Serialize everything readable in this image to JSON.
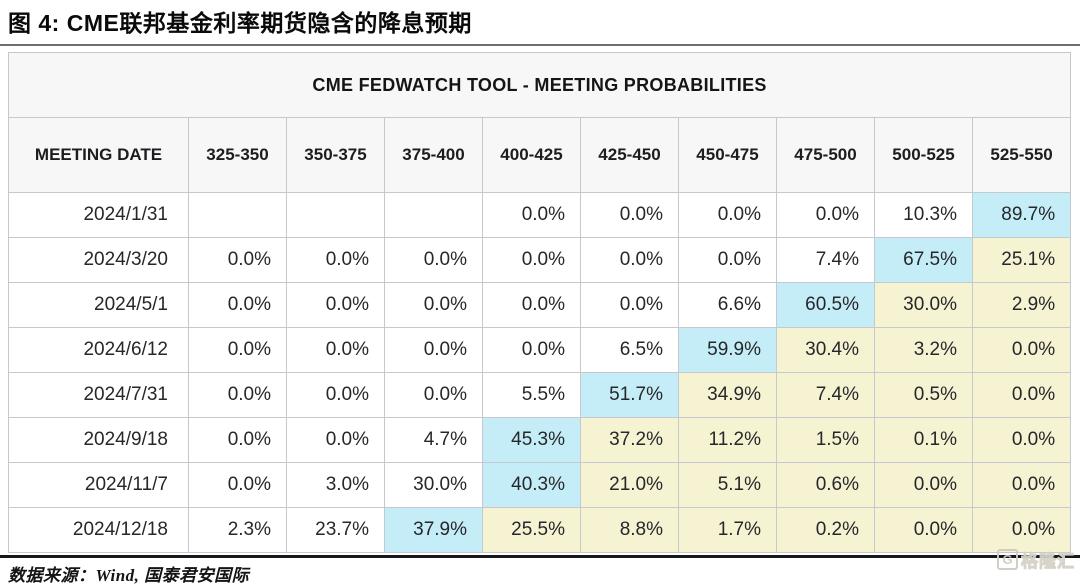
{
  "figure": {
    "title": "图 4:  CME联邦基金利率期货隐含的降息预期",
    "source_note": "数据来源：Wind, 国泰君安国际",
    "watermark": {
      "logo_letter": "G",
      "brand": "格隆汇"
    }
  },
  "chart_data": {
    "type": "table",
    "title": "CME FEDWATCH TOOL - MEETING PROBABILITIES",
    "columns": [
      "MEETING DATE",
      "325-350",
      "350-375",
      "375-400",
      "400-425",
      "425-450",
      "450-475",
      "475-500",
      "500-525",
      "525-550"
    ],
    "rows": [
      {
        "date": "2024/1/31",
        "values": [
          "",
          "",
          "",
          "0.0%",
          "0.0%",
          "0.0%",
          "0.0%",
          "10.3%",
          "89.7%"
        ],
        "max_col": 8
      },
      {
        "date": "2024/3/20",
        "values": [
          "0.0%",
          "0.0%",
          "0.0%",
          "0.0%",
          "0.0%",
          "0.0%",
          "7.4%",
          "67.5%",
          "25.1%"
        ],
        "max_col": 7
      },
      {
        "date": "2024/5/1",
        "values": [
          "0.0%",
          "0.0%",
          "0.0%",
          "0.0%",
          "0.0%",
          "6.6%",
          "60.5%",
          "30.0%",
          "2.9%"
        ],
        "max_col": 6
      },
      {
        "date": "2024/6/12",
        "values": [
          "0.0%",
          "0.0%",
          "0.0%",
          "0.0%",
          "6.5%",
          "59.9%",
          "30.4%",
          "3.2%",
          "0.0%"
        ],
        "max_col": 5
      },
      {
        "date": "2024/7/31",
        "values": [
          "0.0%",
          "0.0%",
          "0.0%",
          "5.5%",
          "51.7%",
          "34.9%",
          "7.4%",
          "0.5%",
          "0.0%"
        ],
        "max_col": 4
      },
      {
        "date": "2024/9/18",
        "values": [
          "0.0%",
          "0.0%",
          "4.7%",
          "45.3%",
          "37.2%",
          "11.2%",
          "1.5%",
          "0.1%",
          "0.0%"
        ],
        "max_col": 3
      },
      {
        "date": "2024/11/7",
        "values": [
          "0.0%",
          "3.0%",
          "30.0%",
          "40.3%",
          "21.0%",
          "5.1%",
          "0.6%",
          "0.0%",
          "0.0%"
        ],
        "max_col": 3
      },
      {
        "date": "2024/12/18",
        "values": [
          "2.3%",
          "23.7%",
          "37.9%",
          "25.5%",
          "8.8%",
          "1.7%",
          "0.2%",
          "0.0%",
          "0.0%"
        ],
        "max_col": 2
      }
    ],
    "colors": {
      "highlight_max": "#c5edf7",
      "highlight_right_of_max": "#f6f3d3",
      "header_bg": "#f7f7f8",
      "grid": "#c5c9cf"
    }
  }
}
